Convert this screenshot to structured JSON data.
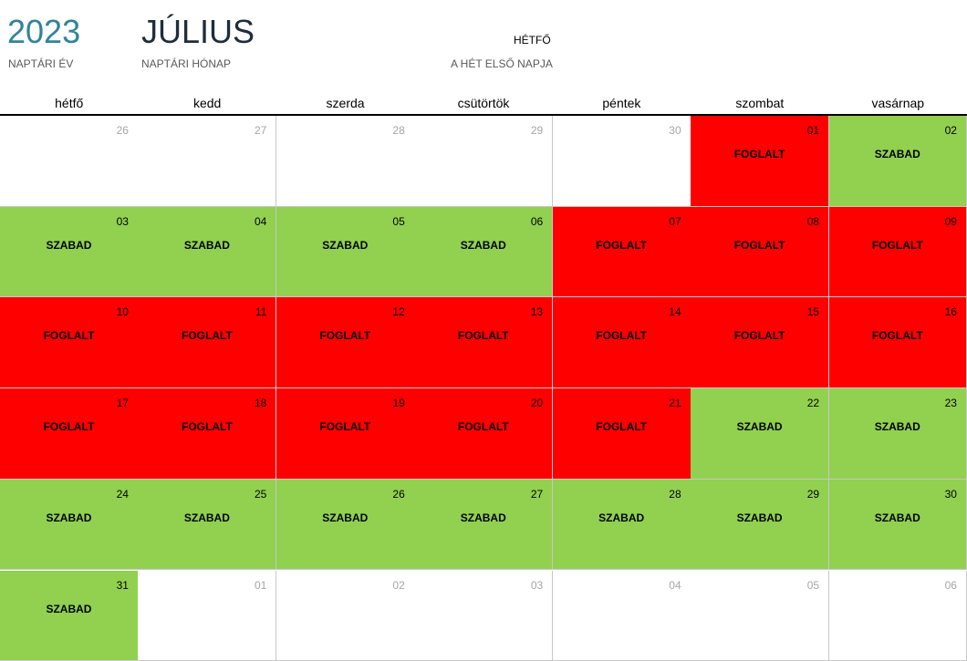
{
  "header": {
    "year": "2023",
    "year_label": "NAPTÁRI ÉV",
    "month": "JÚLIUS",
    "month_label": "NAPTÁRI HÓNAP",
    "first_day": "HÉTFŐ",
    "first_day_label": "A HÉT ELSŐ NAPJA"
  },
  "weekdays": [
    "hétfő",
    "kedd",
    "szerda",
    "csütörtök",
    "péntek",
    "szombat",
    "vasárnap"
  ],
  "weeks": [
    [
      {
        "day": "26",
        "outside": true
      },
      {
        "day": "27",
        "outside": true
      },
      {
        "day": "28",
        "outside": true
      },
      {
        "day": "29",
        "outside": true
      },
      {
        "day": "30",
        "outside": true
      },
      {
        "day": "01",
        "status": "FOGLALT",
        "color": "#ff0000"
      },
      {
        "day": "02",
        "status": "SZABAD",
        "color": "#92d050"
      }
    ],
    [
      {
        "day": "03",
        "status": "SZABAD",
        "color": "#92d050"
      },
      {
        "day": "04",
        "status": "SZABAD",
        "color": "#92d050"
      },
      {
        "day": "05",
        "status": "SZABAD",
        "color": "#92d050"
      },
      {
        "day": "06",
        "status": "SZABAD",
        "color": "#92d050"
      },
      {
        "day": "07",
        "status": "FOGLALT",
        "color": "#ff0000"
      },
      {
        "day": "08",
        "status": "FOGLALT",
        "color": "#ff0000"
      },
      {
        "day": "09",
        "status": "FOGLALT",
        "color": "#ff0000"
      }
    ],
    [
      {
        "day": "10",
        "status": "FOGLALT",
        "color": "#ff0000"
      },
      {
        "day": "11",
        "status": "FOGLALT",
        "color": "#ff0000"
      },
      {
        "day": "12",
        "status": "FOGLALT",
        "color": "#ff0000"
      },
      {
        "day": "13",
        "status": "FOGLALT",
        "color": "#ff0000"
      },
      {
        "day": "14",
        "status": "FOGLALT",
        "color": "#ff0000"
      },
      {
        "day": "15",
        "status": "FOGLALT",
        "color": "#ff0000"
      },
      {
        "day": "16",
        "status": "FOGLALT",
        "color": "#ff0000"
      }
    ],
    [
      {
        "day": "17",
        "status": "FOGLALT",
        "color": "#ff0000"
      },
      {
        "day": "18",
        "status": "FOGLALT",
        "color": "#ff0000"
      },
      {
        "day": "19",
        "status": "FOGLALT",
        "color": "#ff0000"
      },
      {
        "day": "20",
        "status": "FOGLALT",
        "color": "#ff0000"
      },
      {
        "day": "21",
        "status": "FOGLALT",
        "color": "#ff0000"
      },
      {
        "day": "22",
        "status": "SZABAD",
        "color": "#92d050"
      },
      {
        "day": "23",
        "status": "SZABAD",
        "color": "#92d050"
      }
    ],
    [
      {
        "day": "24",
        "status": "SZABAD",
        "color": "#92d050"
      },
      {
        "day": "25",
        "status": "SZABAD",
        "color": "#92d050"
      },
      {
        "day": "26",
        "status": "SZABAD",
        "color": "#92d050"
      },
      {
        "day": "27",
        "status": "SZABAD",
        "color": "#92d050"
      },
      {
        "day": "28",
        "status": "SZABAD",
        "color": "#92d050"
      },
      {
        "day": "29",
        "status": "SZABAD",
        "color": "#92d050"
      },
      {
        "day": "30",
        "status": "SZABAD",
        "color": "#92d050"
      }
    ],
    [
      {
        "day": "31",
        "status": "SZABAD",
        "color": "#92d050"
      },
      {
        "day": "01",
        "outside": true
      },
      {
        "day": "02",
        "outside": true
      },
      {
        "day": "03",
        "outside": true
      },
      {
        "day": "04",
        "outside": true
      },
      {
        "day": "05",
        "outside": true
      },
      {
        "day": "06",
        "outside": true
      }
    ]
  ]
}
